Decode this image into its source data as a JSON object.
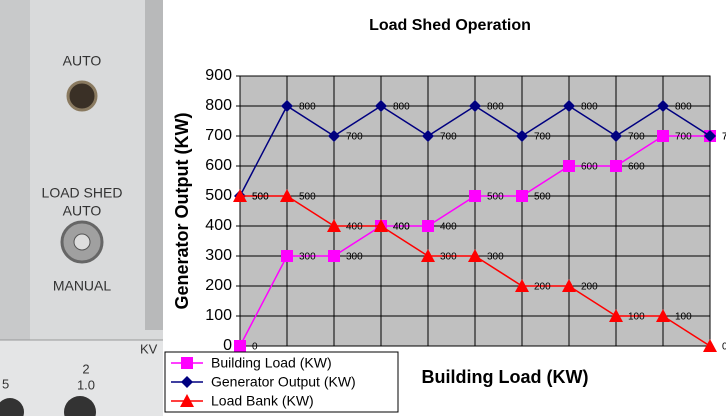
{
  "panel": {
    "auto_top": "AUTO",
    "load_shed": "LOAD SHED",
    "auto": "AUTO",
    "manual": "MANUAL",
    "kv": "KV",
    "num_left": "5",
    "num_2": "2",
    "num_10": "1.0"
  },
  "chart_data": {
    "type": "line",
    "title": "Load Shed Operation",
    "y_label": "Generator Output (KW)",
    "x_label": "Building Load (KW)",
    "categories": [
      null,
      null,
      null,
      null,
      null,
      null,
      null,
      null,
      null,
      null,
      null
    ],
    "series": [
      {
        "name": "Building Load (KW)",
        "color": "#ff00ff",
        "marker": "square",
        "values": [
          0,
          300,
          300,
          400,
          400,
          500,
          500,
          600,
          600,
          700,
          700
        ]
      },
      {
        "name": "Generator Output (KW)",
        "color": "#000080",
        "marker": "diamond",
        "values": [
          500,
          800,
          700,
          800,
          700,
          800,
          700,
          800,
          700,
          800,
          700
        ]
      },
      {
        "name": "Load Bank (KW)",
        "color": "#ff0000",
        "marker": "triangle",
        "values": [
          500,
          500,
          400,
          400,
          300,
          300,
          200,
          200,
          100,
          100,
          0
        ]
      }
    ],
    "ylim": [
      0,
      900
    ],
    "yticks": [
      0,
      100,
      200,
      300,
      400,
      500,
      600,
      700,
      800,
      900
    ],
    "grid": true,
    "legend": "bottom-left"
  }
}
